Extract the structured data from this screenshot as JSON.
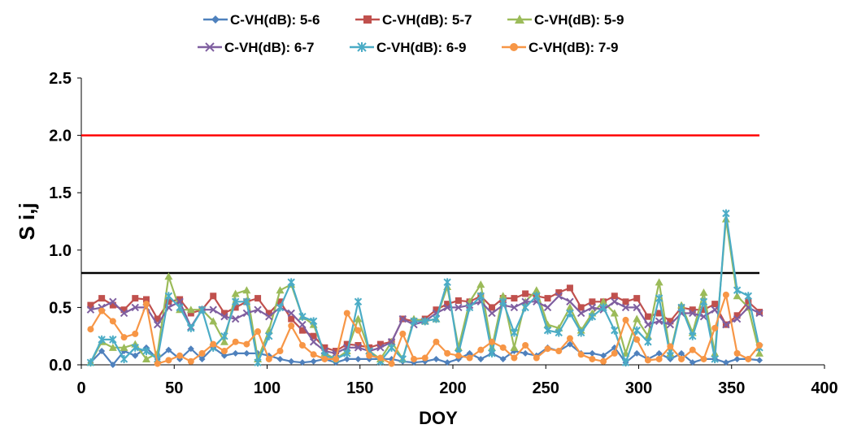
{
  "chart_data": {
    "type": "line",
    "title": "",
    "xlabel": "DOY",
    "ylabel": "S i,j",
    "xlim": [
      0,
      400
    ],
    "ylim": [
      0,
      2.5
    ],
    "xticks": [
      "0",
      "50",
      "100",
      "150",
      "200",
      "250",
      "300",
      "350",
      "400"
    ],
    "yticks": [
      "0.0",
      "0.5",
      "1.0",
      "1.5",
      "2.0",
      "2.5"
    ],
    "grid": false,
    "legend_position": "top",
    "x": [
      5,
      11,
      17,
      23,
      29,
      35,
      41,
      47,
      53,
      59,
      65,
      71,
      77,
      83,
      89,
      95,
      101,
      107,
      113,
      119,
      125,
      131,
      137,
      143,
      149,
      155,
      161,
      167,
      173,
      179,
      185,
      191,
      197,
      203,
      209,
      215,
      221,
      227,
      233,
      239,
      245,
      251,
      257,
      263,
      269,
      275,
      281,
      287,
      293,
      299,
      305,
      311,
      317,
      323,
      329,
      335,
      341,
      347,
      353,
      359,
      365
    ],
    "series": [
      {
        "name": "C-VH(dB): 5-6",
        "color": "#4F81BD",
        "marker": "diamond",
        "values": [
          0.02,
          0.12,
          0.0,
          0.12,
          0.08,
          0.15,
          0.05,
          0.13,
          0.05,
          0.14,
          0.05,
          0.15,
          0.08,
          0.1,
          0.1,
          0.1,
          0.08,
          0.05,
          0.03,
          0.02,
          0.03,
          0.05,
          0.02,
          0.05,
          0.05,
          0.05,
          0.05,
          0.05,
          0.03,
          0.02,
          0.03,
          0.05,
          0.02,
          0.05,
          0.1,
          0.05,
          0.1,
          0.05,
          0.12,
          0.1,
          0.08,
          0.15,
          0.12,
          0.18,
          0.1,
          0.1,
          0.08,
          0.15,
          0.02,
          0.1,
          0.05,
          0.1,
          0.05,
          0.1,
          0.02,
          0.05,
          0.05,
          0.02,
          0.05,
          0.05,
          0.04
        ]
      },
      {
        "name": "C-VH(dB): 5-7",
        "color": "#C0504D",
        "marker": "square",
        "values": [
          0.52,
          0.58,
          0.52,
          0.48,
          0.58,
          0.57,
          0.4,
          0.55,
          0.57,
          0.45,
          0.48,
          0.6,
          0.45,
          0.5,
          0.55,
          0.58,
          0.45,
          0.55,
          0.4,
          0.3,
          0.25,
          0.15,
          0.12,
          0.18,
          0.17,
          0.15,
          0.18,
          0.2,
          0.4,
          0.38,
          0.4,
          0.48,
          0.53,
          0.56,
          0.55,
          0.6,
          0.5,
          0.58,
          0.58,
          0.62,
          0.6,
          0.58,
          0.63,
          0.67,
          0.5,
          0.55,
          0.55,
          0.6,
          0.55,
          0.58,
          0.42,
          0.45,
          0.38,
          0.5,
          0.48,
          0.48,
          0.53,
          0.35,
          0.43,
          0.55,
          0.46
        ]
      },
      {
        "name": "C-VH(dB): 5-9",
        "color": "#9BBB59",
        "marker": "triangle",
        "values": [
          0.02,
          0.2,
          0.15,
          0.15,
          0.18,
          0.05,
          0.1,
          0.77,
          0.48,
          0.48,
          0.48,
          0.38,
          0.2,
          0.62,
          0.65,
          0.05,
          0.3,
          0.65,
          0.7,
          0.42,
          0.35,
          0.1,
          0.05,
          0.12,
          0.4,
          0.12,
          0.05,
          0.2,
          0.05,
          0.4,
          0.38,
          0.4,
          0.68,
          0.15,
          0.55,
          0.7,
          0.15,
          0.6,
          0.15,
          0.55,
          0.65,
          0.35,
          0.32,
          0.5,
          0.3,
          0.45,
          0.55,
          0.45,
          0.1,
          0.4,
          0.25,
          0.72,
          0.1,
          0.52,
          0.28,
          0.63,
          0.1,
          1.27,
          0.6,
          0.5,
          0.1
        ]
      },
      {
        "name": "C-VH(dB): 6-7",
        "color": "#7F5FA0",
        "marker": "x",
        "values": [
          0.48,
          0.5,
          0.55,
          0.45,
          0.5,
          0.5,
          0.35,
          0.5,
          0.55,
          0.33,
          0.48,
          0.48,
          0.42,
          0.4,
          0.45,
          0.48,
          0.42,
          0.5,
          0.45,
          0.35,
          0.2,
          0.12,
          0.1,
          0.15,
          0.15,
          0.12,
          0.15,
          0.2,
          0.4,
          0.35,
          0.38,
          0.45,
          0.5,
          0.5,
          0.52,
          0.55,
          0.45,
          0.52,
          0.5,
          0.55,
          0.55,
          0.5,
          0.6,
          0.55,
          0.45,
          0.5,
          0.48,
          0.55,
          0.5,
          0.5,
          0.35,
          0.38,
          0.35,
          0.45,
          0.45,
          0.42,
          0.48,
          0.35,
          0.4,
          0.5,
          0.45
        ]
      },
      {
        "name": "C-VH(dB): 6-9",
        "color": "#4BACC6",
        "marker": "star",
        "values": [
          0.02,
          0.22,
          0.22,
          0.05,
          0.15,
          0.12,
          0.05,
          0.6,
          0.5,
          0.32,
          0.48,
          0.15,
          0.25,
          0.55,
          0.55,
          0.02,
          0.25,
          0.5,
          0.72,
          0.42,
          0.38,
          0.08,
          0.05,
          0.1,
          0.55,
          0.12,
          0.03,
          0.15,
          0.05,
          0.38,
          0.38,
          0.4,
          0.72,
          0.1,
          0.5,
          0.6,
          0.1,
          0.55,
          0.28,
          0.5,
          0.6,
          0.3,
          0.28,
          0.45,
          0.28,
          0.42,
          0.5,
          0.3,
          0.02,
          0.3,
          0.2,
          0.58,
          0.08,
          0.5,
          0.25,
          0.55,
          0.05,
          1.32,
          0.65,
          0.6,
          0.15
        ]
      },
      {
        "name": "C-VH(dB): 7-9",
        "color": "#F79646",
        "marker": "circle",
        "values": [
          0.31,
          0.47,
          0.38,
          0.24,
          0.27,
          0.53,
          0.01,
          0.04,
          0.08,
          0.03,
          0.1,
          0.18,
          0.12,
          0.2,
          0.18,
          0.29,
          0.05,
          0.12,
          0.34,
          0.17,
          0.09,
          0.05,
          0.05,
          0.45,
          0.3,
          0.08,
          0.06,
          0.01,
          0.27,
          0.05,
          0.06,
          0.2,
          0.1,
          0.08,
          0.06,
          0.13,
          0.2,
          0.15,
          0.06,
          0.17,
          0.06,
          0.14,
          0.12,
          0.23,
          0.09,
          0.05,
          0.03,
          0.1,
          0.39,
          0.22,
          0.04,
          0.05,
          0.16,
          0.05,
          0.13,
          0.05,
          0.32,
          0.61,
          0.1,
          0.05,
          0.17
        ]
      }
    ],
    "reference_lines": [
      {
        "y": 2.0,
        "x_range": [
          0,
          365
        ],
        "color": "#FF0000"
      },
      {
        "y": 0.8,
        "x_range": [
          0,
          365
        ],
        "color": "#000000"
      }
    ]
  }
}
